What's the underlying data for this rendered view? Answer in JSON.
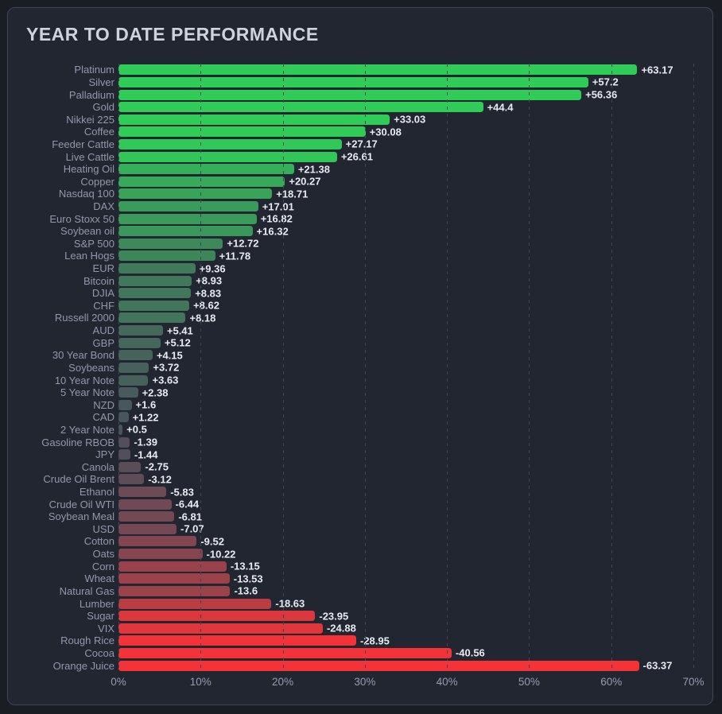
{
  "header": {
    "title": "YEAR TO DATE PERFORMANCE"
  },
  "chart_data": {
    "type": "bar",
    "orientation": "horizontal",
    "title": "YEAR TO DATE PERFORMANCE",
    "unit": "%",
    "note": "bar length encodes absolute value of YTD % change; color encodes sign and magnitude (green positive, red negative, gray near zero)",
    "xlim": [
      0,
      70
    ],
    "x_ticks": [
      "0%",
      "10%",
      "20%",
      "30%",
      "40%",
      "50%",
      "60%",
      "70%"
    ],
    "grid": "vertical-dashed",
    "legend": "none",
    "categories": [
      "Platinum",
      "Silver",
      "Palladium",
      "Gold",
      "Nikkei 225",
      "Coffee",
      "Feeder Cattle",
      "Live Cattle",
      "Heating Oil",
      "Copper",
      "Nasdaq 100",
      "DAX",
      "Euro Stoxx 50",
      "Soybean oil",
      "S&P 500",
      "Lean Hogs",
      "EUR",
      "Bitcoin",
      "DJIA",
      "CHF",
      "Russell 2000",
      "AUD",
      "GBP",
      "30 Year Bond",
      "Soybeans",
      "10 Year Note",
      "5 Year Note",
      "NZD",
      "CAD",
      "2 Year Note",
      "Gasoline RBOB",
      "JPY",
      "Canola",
      "Crude Oil Brent",
      "Ethanol",
      "Crude Oil WTI",
      "Soybean Meal",
      "USD",
      "Cotton",
      "Oats",
      "Corn",
      "Wheat",
      "Natural Gas",
      "Lumber",
      "Sugar",
      "VIX",
      "Rough Rice",
      "Cocoa",
      "Orange Juice"
    ],
    "values": [
      63.17,
      57.2,
      56.36,
      44.4,
      33.03,
      30.08,
      27.17,
      26.61,
      21.38,
      20.27,
      18.71,
      17.01,
      16.82,
      16.32,
      12.72,
      11.78,
      9.36,
      8.93,
      8.83,
      8.62,
      8.18,
      5.41,
      5.12,
      4.15,
      3.72,
      3.63,
      2.38,
      1.6,
      1.22,
      0.5,
      -1.39,
      -1.44,
      -2.75,
      -3.12,
      -5.83,
      -6.44,
      -6.81,
      -7.07,
      -9.52,
      -10.22,
      -13.15,
      -13.53,
      -13.6,
      -18.63,
      -23.95,
      -24.88,
      -28.95,
      -40.56,
      -63.37
    ]
  },
  "style": {
    "positive_color": "#2fcd58",
    "negative_color": "#f33338",
    "neutral_color": "#4a505c",
    "color_saturation_abs_value": 28,
    "card_background": "#222631",
    "page_background": "#1a1d24",
    "card_border": "#3f4654",
    "title_color": "#ced3de",
    "label_color": "#9298aa",
    "value_color": "#e8ebf1",
    "gridline_color": "#3e4554"
  }
}
